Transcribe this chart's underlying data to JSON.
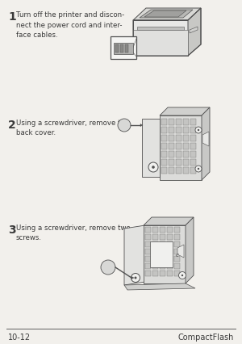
{
  "page_number": "10-12",
  "page_title": "CompactFlash",
  "background_color": "#f2f0ec",
  "text_color": "#3a3a3a",
  "line_color": "#707070",
  "dark_line": "#505050",
  "step1_number": "1",
  "step1_text": "Turn off the printer and discon-\nnect the power cord and inter-\nface cables.",
  "step2_number": "2",
  "step2_text": "Using a screwdriver, remove the\nback cover.",
  "step3_number": "3",
  "step3_text": "Using a screwdriver, remove two\nscrews.",
  "footer_line_color": "#606060",
  "number_fontsize": 10,
  "text_fontsize": 6.2,
  "footer_fontsize": 7.0
}
